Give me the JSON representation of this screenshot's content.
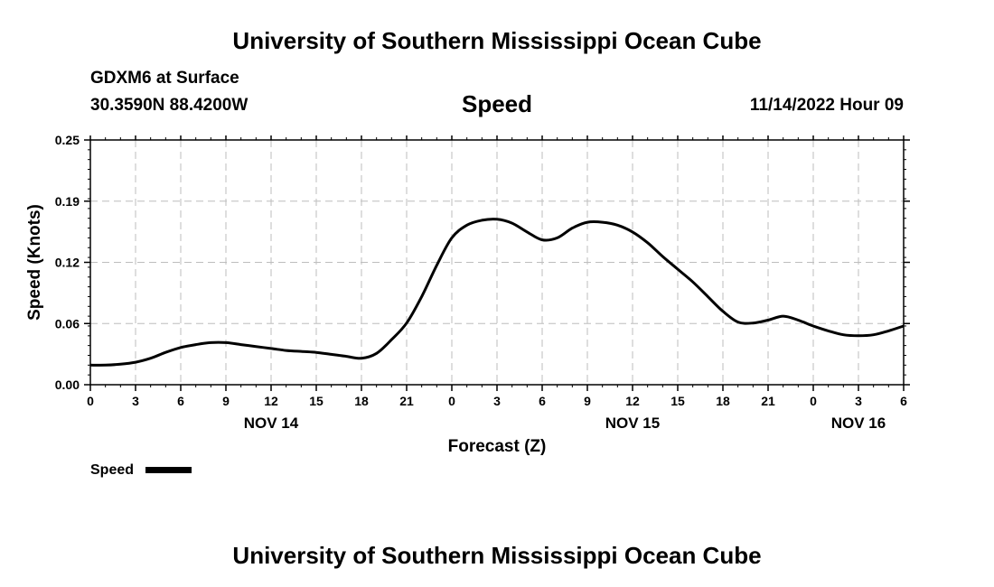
{
  "page": {
    "title_top": "University of Southern Mississippi Ocean Cube",
    "title_bottom": "University of Southern Mississippi Ocean Cube",
    "station_line": "GDXM6 at Surface",
    "coords_line": "30.3590N  88.4200W",
    "datetime": "11/14/2022 Hour 09"
  },
  "chart_data": {
    "type": "line",
    "title": "Speed",
    "xlabel": "Forecast (Z)",
    "ylabel": "Speed (Knots)",
    "ylim": [
      0,
      0.25
    ],
    "xlim": [
      0,
      54
    ],
    "x_unit": "hours since NOV 14 00Z",
    "y_ticks": [
      "0.00",
      "0.06",
      "0.12",
      "0.19",
      "0.25"
    ],
    "y_tick_values": [
      0,
      0.0625,
      0.125,
      0.1875,
      0.25
    ],
    "x_ticks": [
      "0",
      "3",
      "6",
      "9",
      "12",
      "15",
      "18",
      "21",
      "0",
      "3",
      "6",
      "9",
      "12",
      "15",
      "18",
      "21",
      "0",
      "3",
      "6"
    ],
    "x_tick_values": [
      0,
      3,
      6,
      9,
      12,
      15,
      18,
      21,
      24,
      27,
      30,
      33,
      36,
      39,
      42,
      45,
      48,
      51,
      54
    ],
    "day_labels": [
      {
        "label": "NOV 14",
        "x": 12
      },
      {
        "label": "NOV 15",
        "x": 36
      },
      {
        "label": "NOV 16",
        "x": 51
      }
    ],
    "grid": true,
    "legend_position": "bottom-left",
    "series": [
      {
        "name": "Speed",
        "color": "#000000",
        "x": [
          0,
          1,
          2,
          3,
          4,
          5,
          6,
          7,
          8,
          9,
          10,
          11,
          12,
          13,
          14,
          15,
          16,
          17,
          18,
          19,
          20,
          21,
          22,
          23,
          24,
          25,
          26,
          27,
          28,
          29,
          30,
          31,
          32,
          33,
          34,
          35,
          36,
          37,
          38,
          39,
          40,
          41,
          42,
          43,
          44,
          45,
          46,
          47,
          48,
          49,
          50,
          51,
          52,
          53,
          54
        ],
        "y": [
          0.02,
          0.02,
          0.021,
          0.023,
          0.027,
          0.033,
          0.038,
          0.041,
          0.043,
          0.043,
          0.041,
          0.039,
          0.037,
          0.035,
          0.034,
          0.033,
          0.031,
          0.029,
          0.027,
          0.032,
          0.046,
          0.063,
          0.09,
          0.122,
          0.15,
          0.163,
          0.168,
          0.169,
          0.165,
          0.156,
          0.148,
          0.15,
          0.16,
          0.166,
          0.166,
          0.163,
          0.156,
          0.145,
          0.131,
          0.118,
          0.105,
          0.09,
          0.075,
          0.064,
          0.063,
          0.066,
          0.07,
          0.066,
          0.06,
          0.055,
          0.051,
          0.05,
          0.051,
          0.055,
          0.06
        ]
      }
    ]
  }
}
